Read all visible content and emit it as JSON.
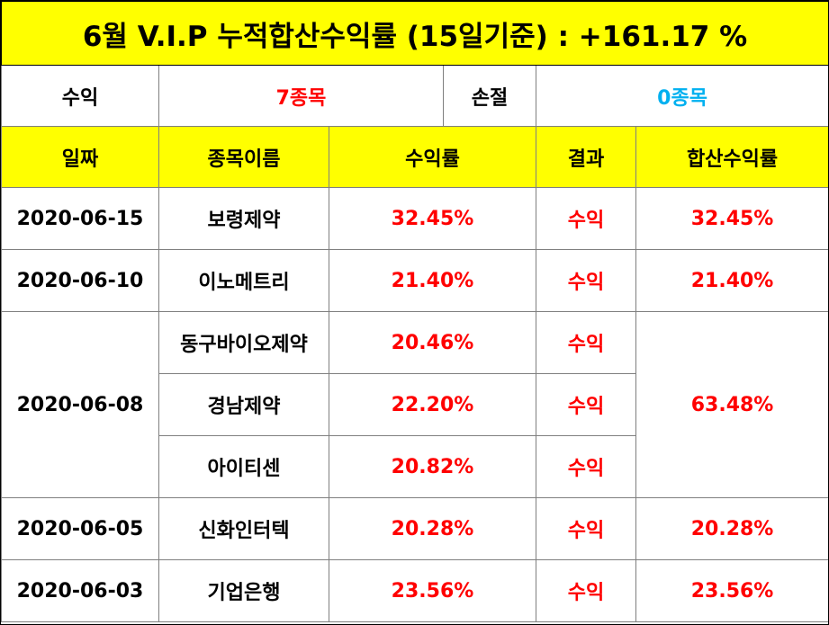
{
  "title": "6월 V.I.P 누적합산수익률 (15일기준) : +161.17 %",
  "summary": {
    "profit_label": "수익",
    "profit_value": "7종목",
    "loss_label": "손절",
    "loss_value": "0종목"
  },
  "headers": {
    "date": "일짜",
    "name": "종목이름",
    "return": "수익률",
    "result": "결과",
    "total": "합산수익률"
  },
  "rows": [
    {
      "date": "2020-06-15",
      "name": "보령제약",
      "return": "32.45%",
      "result": "수익",
      "total": "32.45%"
    },
    {
      "date": "2020-06-10",
      "name": "이노메트리",
      "return": "21.40%",
      "result": "수익",
      "total": "21.40%"
    },
    {
      "date": "2020-06-08",
      "name": "동구바이오제약",
      "return": "20.46%",
      "result": "수익",
      "total": "63.48%"
    },
    {
      "name": "경남제약",
      "return": "22.20%",
      "result": "수익"
    },
    {
      "name": "아이티센",
      "return": "20.82%",
      "result": "수익"
    },
    {
      "date": "2020-06-05",
      "name": "신화인터텍",
      "return": "20.28%",
      "result": "수익",
      "total": "20.28%"
    },
    {
      "date": "2020-06-03",
      "name": "기업은행",
      "return": "23.56%",
      "result": "수익",
      "total": "23.56%"
    }
  ],
  "colors": {
    "header_bg": "#ffff00",
    "profit_text": "#ff0000",
    "loss_text": "#00b0f0"
  }
}
